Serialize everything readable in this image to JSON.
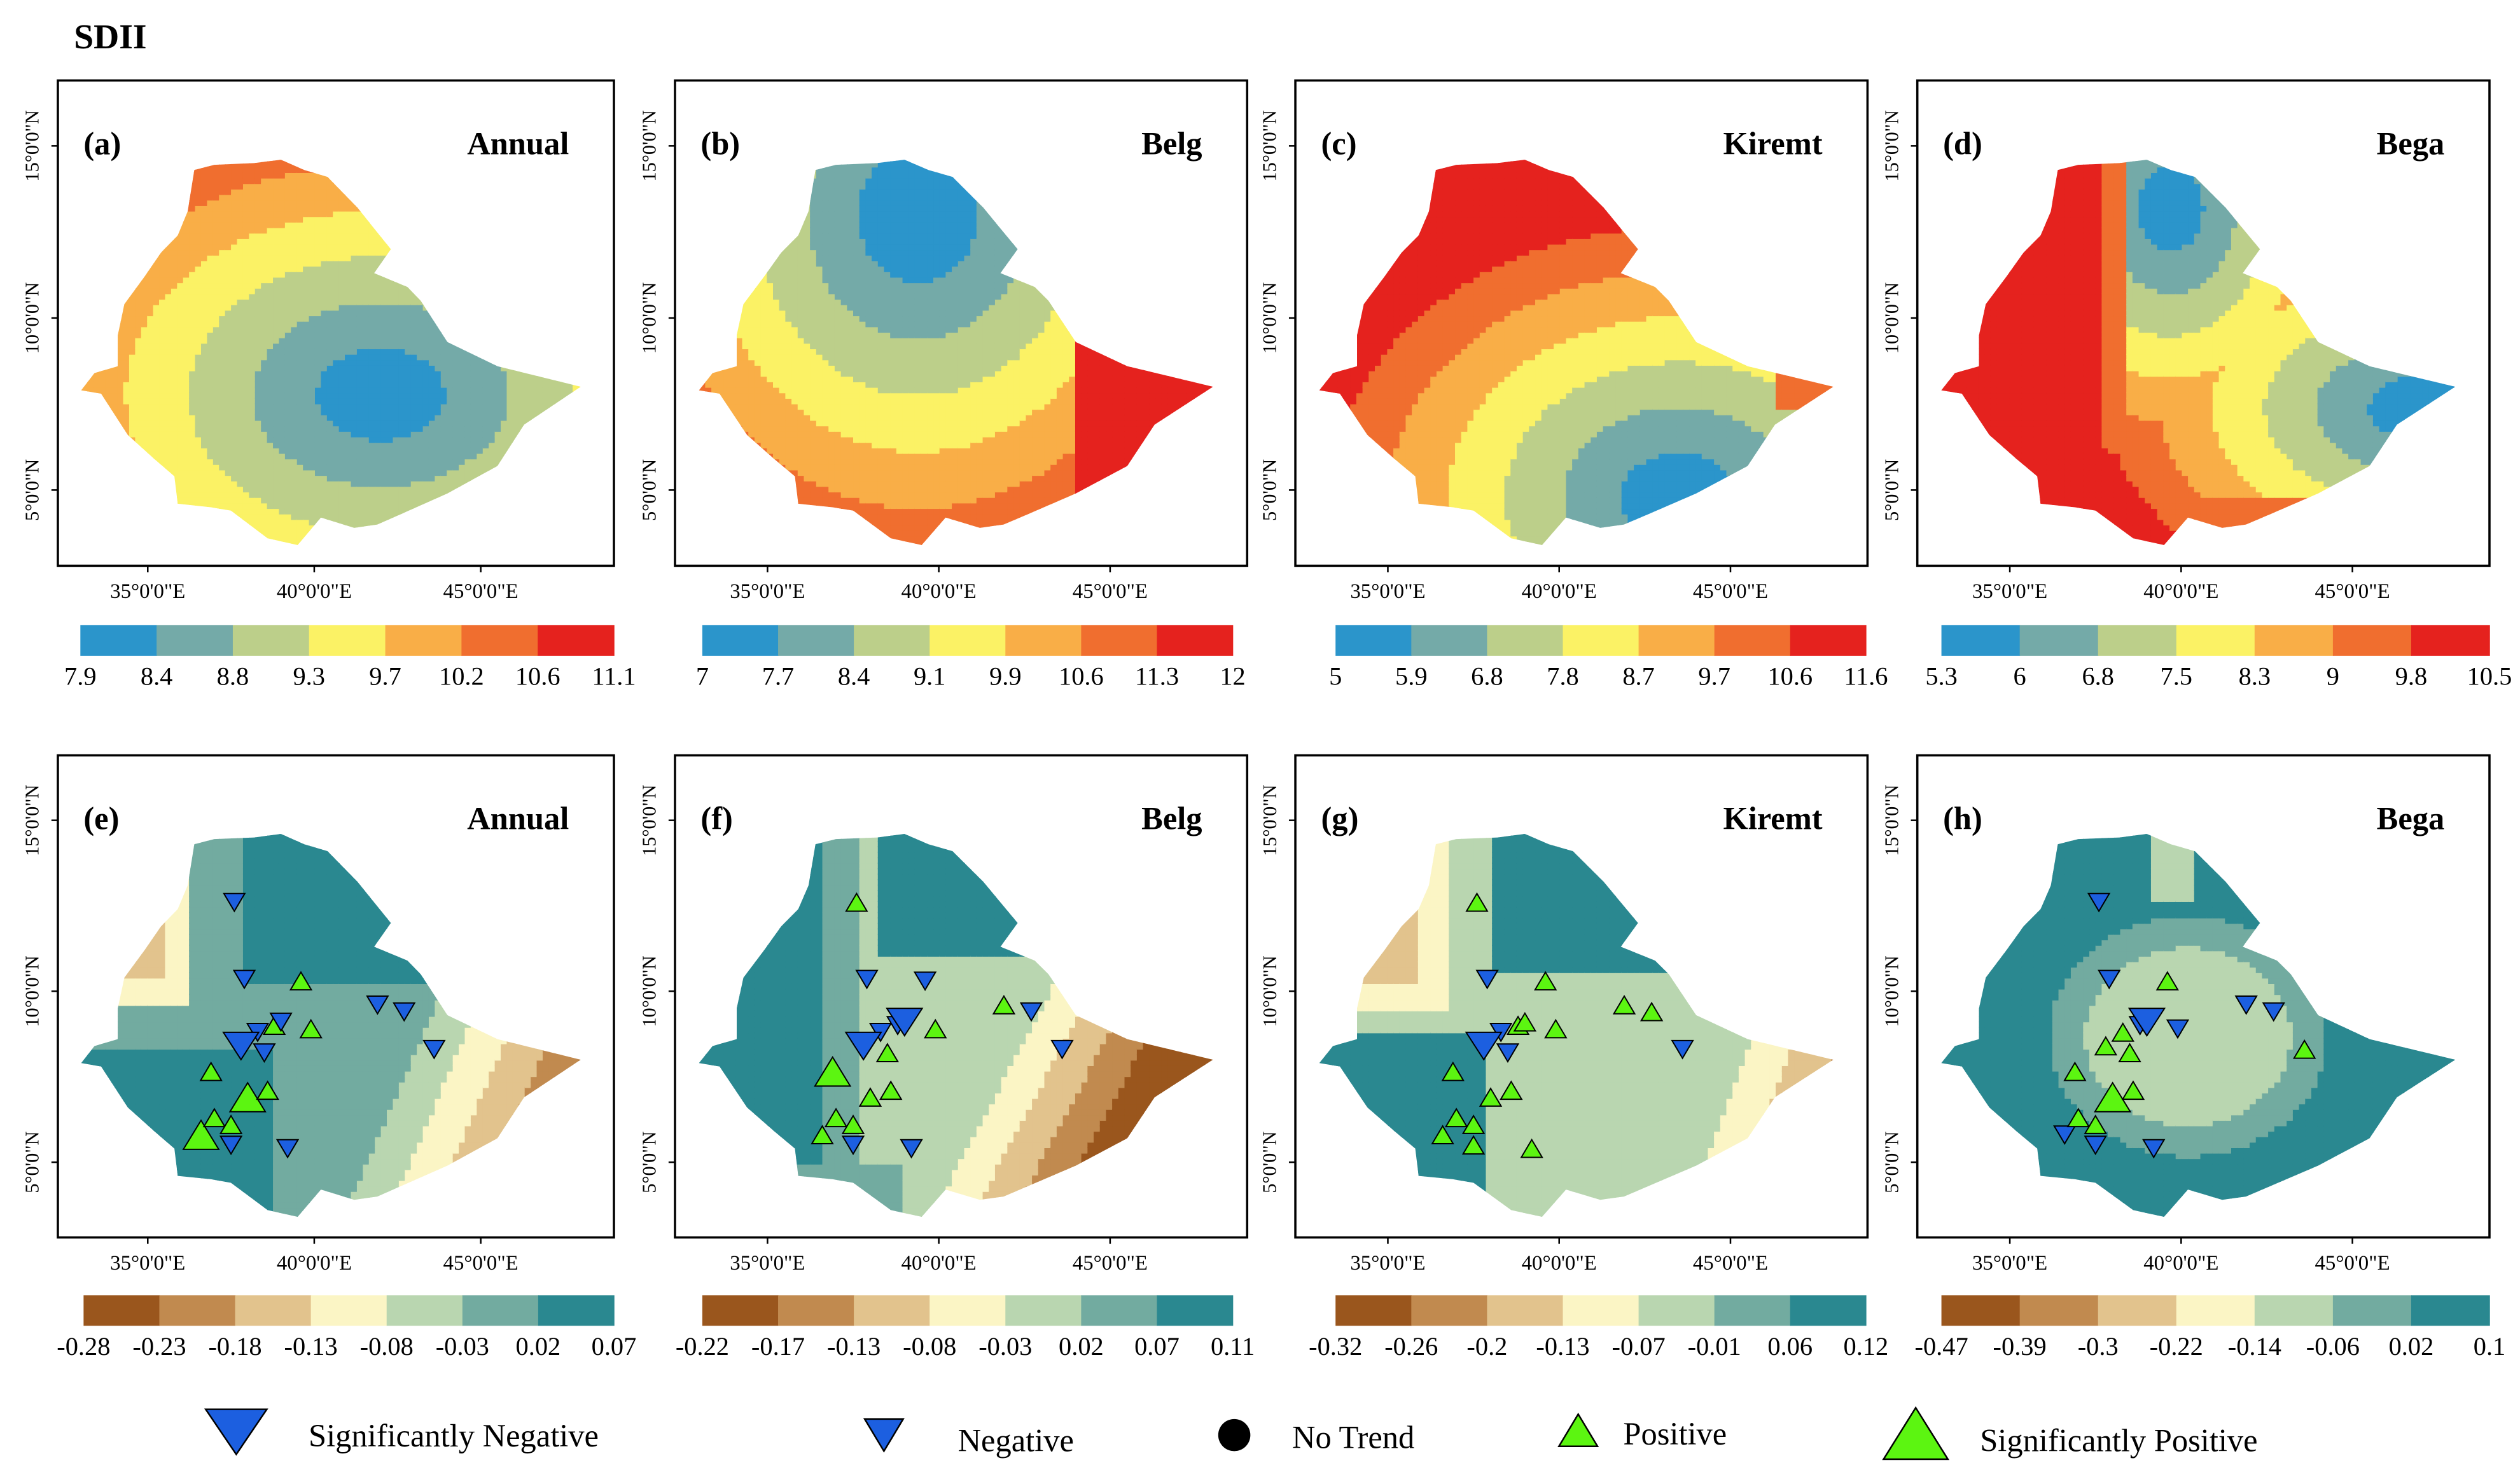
{
  "title": "SDII",
  "axis_labels": {
    "lat": [
      "5°0'0\"N",
      "10°0'0\"N",
      "15°0'0\"N"
    ],
    "lon": [
      "35°0'0\"E",
      "40°0'0\"E",
      "45°0'0\"E"
    ]
  },
  "panels": [
    {
      "id": "(a)",
      "season": "Annual",
      "kind": "mean",
      "breaks": [
        "7.9",
        "8.4",
        "8.8",
        "9.3",
        "9.7",
        "10.2",
        "10.6",
        "11.1"
      ],
      "pattern": "annual_mean"
    },
    {
      "id": "(b)",
      "season": "Belg",
      "kind": "mean",
      "breaks": [
        "7",
        "7.7",
        "8.4",
        "9.1",
        "9.9",
        "10.6",
        "11.3",
        "12"
      ],
      "pattern": "belg_mean"
    },
    {
      "id": "(c)",
      "season": "Kiremt",
      "kind": "mean",
      "breaks": [
        "5",
        "5.9",
        "6.8",
        "7.8",
        "8.7",
        "9.7",
        "10.6",
        "11.6"
      ],
      "pattern": "kiremt_mean"
    },
    {
      "id": "(d)",
      "season": "Bega",
      "kind": "mean",
      "breaks": [
        "5.3",
        "6",
        "6.8",
        "7.5",
        "8.3",
        "9",
        "9.8",
        "10.5"
      ],
      "pattern": "bega_mean"
    },
    {
      "id": "(e)",
      "season": "Annual",
      "kind": "trend",
      "breaks": [
        "-0.28",
        "-0.23",
        "-0.18",
        "-0.13",
        "-0.08",
        "-0.03",
        "0.02",
        "0.07"
      ],
      "pattern": "annual_trend"
    },
    {
      "id": "(f)",
      "season": "Belg",
      "kind": "trend",
      "breaks": [
        "-0.22",
        "-0.17",
        "-0.13",
        "-0.08",
        "-0.03",
        "0.02",
        "0.07",
        "0.11"
      ],
      "pattern": "belg_trend"
    },
    {
      "id": "(g)",
      "season": "Kiremt",
      "kind": "trend",
      "breaks": [
        "-0.32",
        "-0.26",
        "-0.2",
        "-0.13",
        "-0.07",
        "-0.01",
        "0.06",
        "0.12"
      ],
      "pattern": "kiremt_trend"
    },
    {
      "id": "(h)",
      "season": "Bega",
      "kind": "trend",
      "breaks": [
        "-0.47",
        "-0.39",
        "-0.3",
        "-0.22",
        "-0.14",
        "-0.06",
        "0.02",
        "0.1"
      ],
      "pattern": "bega_trend"
    }
  ],
  "colors": {
    "mean": [
      "#2b95cb",
      "#74aaa8",
      "#bccf8a",
      "#fbf265",
      "#f9ae47",
      "#f06e2f",
      "#e5221e"
    ],
    "trend": [
      "#9a561d",
      "#c18a4f",
      "#e2c38d",
      "#fbf5c5",
      "#b9d6b0",
      "#72aba0",
      "#2a8890"
    ],
    "neg_marker": "#1c5fe0",
    "pos_marker": "#5cf511",
    "notrend_marker": "#000000"
  },
  "legend": {
    "sig_negative": "Significantly Negative",
    "negative": "Negative",
    "no_trend": "No Trend",
    "positive": "Positive",
    "sig_positive": "Significantly Positive"
  },
  "stations": [
    {
      "lon": 37.6,
      "lat": 12.6,
      "trend": {
        "annual": "neg",
        "belg": "pos",
        "kiremt": "pos",
        "bega": "neg"
      }
    },
    {
      "lon": 37.9,
      "lat": 10.35,
      "trend": {
        "annual": "neg",
        "belg": "neg",
        "kiremt": "neg",
        "bega": "neg"
      }
    },
    {
      "lon": 39.6,
      "lat": 10.3,
      "trend": {
        "annual": "pos",
        "belg": "neg",
        "kiremt": "pos",
        "bega": "pos"
      }
    },
    {
      "lon": 38.3,
      "lat": 8.8,
      "trend": {
        "annual": "neg",
        "belg": "neg",
        "kiremt": "neg",
        "bega": "pos"
      }
    },
    {
      "lon": 38.8,
      "lat": 9.0,
      "trend": {
        "annual": "pos",
        "belg": "neg",
        "kiremt": "pos",
        "bega": "neg"
      }
    },
    {
      "lon": 37.8,
      "lat": 8.4,
      "trend": {
        "annual": "sneg",
        "belg": "sneg",
        "kiremt": "sneg",
        "bega": "pos"
      }
    },
    {
      "lon": 38.5,
      "lat": 8.2,
      "trend": {
        "annual": "neg",
        "belg": "pos",
        "kiremt": "neg",
        "bega": "pos"
      }
    },
    {
      "lon": 39.0,
      "lat": 9.1,
      "trend": {
        "annual": "neg",
        "belg": "sneg",
        "kiremt": "pos",
        "bega": "sneg"
      }
    },
    {
      "lon": 39.9,
      "lat": 8.9,
      "trend": {
        "annual": "pos",
        "belg": "pos",
        "kiremt": "pos",
        "bega": "neg"
      }
    },
    {
      "lon": 41.9,
      "lat": 9.6,
      "trend": {
        "annual": "neg",
        "belg": "pos",
        "kiremt": "pos",
        "bega": "neg"
      }
    },
    {
      "lon": 42.7,
      "lat": 9.4,
      "trend": {
        "annual": "neg",
        "belg": "neg",
        "kiremt": "pos",
        "bega": "neg"
      }
    },
    {
      "lon": 43.6,
      "lat": 8.3,
      "trend": {
        "annual": "neg",
        "belg": "neg",
        "kiremt": "neg",
        "bega": "pos"
      }
    },
    {
      "lon": 36.9,
      "lat": 7.65,
      "trend": {
        "annual": "pos",
        "belg": "spos",
        "kiremt": "pos",
        "bega": "pos"
      }
    },
    {
      "lon": 38.0,
      "lat": 6.9,
      "trend": {
        "annual": "spos",
        "belg": "pos",
        "kiremt": "pos",
        "bega": "spos"
      }
    },
    {
      "lon": 38.6,
      "lat": 7.1,
      "trend": {
        "annual": "pos",
        "belg": "pos",
        "kiremt": "pos",
        "bega": "pos"
      }
    },
    {
      "lon": 36.6,
      "lat": 5.8,
      "trend": {
        "annual": "spos",
        "belg": "pos",
        "kiremt": "pos",
        "bega": "neg"
      }
    },
    {
      "lon": 37.0,
      "lat": 6.3,
      "trend": {
        "annual": "pos",
        "belg": "pos",
        "kiremt": "pos",
        "bega": "pos"
      }
    },
    {
      "lon": 37.5,
      "lat": 6.1,
      "trend": {
        "annual": "pos",
        "belg": "pos",
        "kiremt": "pos",
        "bega": "pos"
      }
    },
    {
      "lon": 37.5,
      "lat": 5.5,
      "trend": {
        "annual": "neg",
        "belg": "neg",
        "kiremt": "pos",
        "bega": "neg"
      }
    },
    {
      "lon": 39.2,
      "lat": 5.4,
      "trend": {
        "annual": "neg",
        "belg": "neg",
        "kiremt": "pos",
        "bega": "neg"
      }
    }
  ]
}
